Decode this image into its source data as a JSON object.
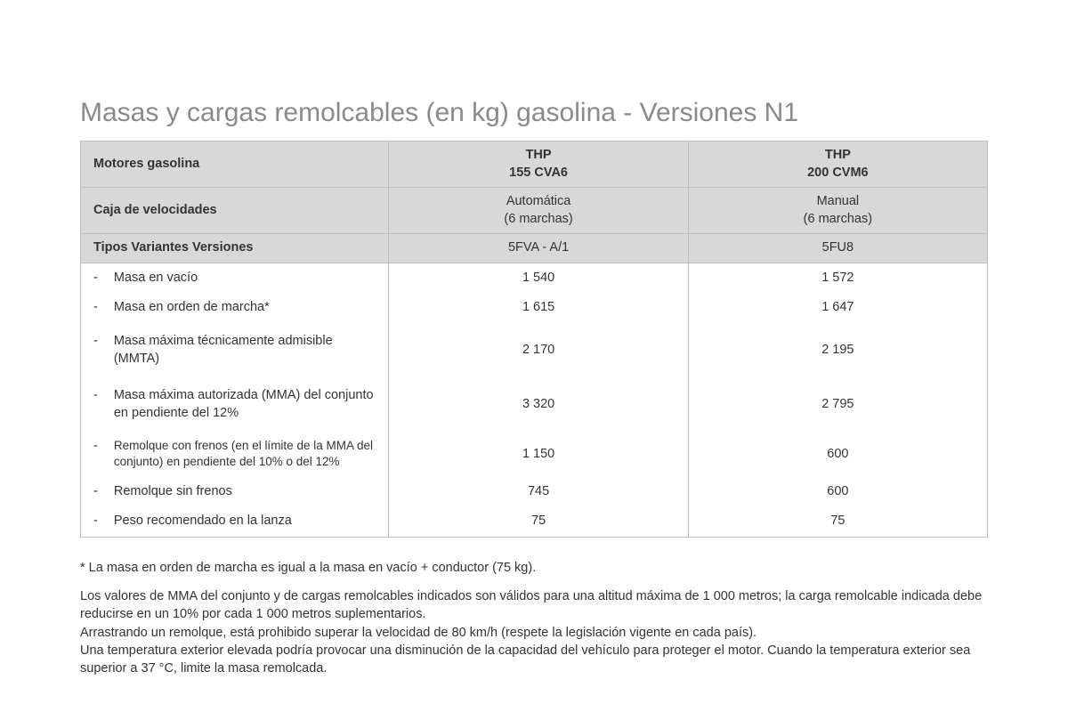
{
  "title": "Masas y cargas remolcables (en kg) gasolina - Versiones N1",
  "table": {
    "header_rows": [
      {
        "label": "Motores gasolina",
        "c1_l1": "THP",
        "c1_l2": "155 CVA6",
        "c2_l1": "THP",
        "c2_l2": "200 CVM6"
      },
      {
        "label": "Caja de velocidades",
        "c1_l1": "Automática",
        "c1_l2": "(6 marchas)",
        "c2_l1": "Manual",
        "c2_l2": "(6 marchas)"
      },
      {
        "label": "Tipos Variantes Versiones",
        "c1": "5FVA - A/1",
        "c2": "5FU8"
      }
    ],
    "rows": [
      {
        "label": "Masa en vacío",
        "c1": "1 540",
        "c2": "1 572"
      },
      {
        "label": "Masa en orden de marcha*",
        "c1": "1 615",
        "c2": "1 647",
        "spaced_after": true
      },
      {
        "label": "Masa máxima técnicamente admisible (MMTA)",
        "c1": "2 170",
        "c2": "2 195",
        "spaced": true
      },
      {
        "label": "Masa máxima autorizada (MMA) del conjunto en pendiente del 12%",
        "c1": "3 320",
        "c2": "2 795",
        "spaced": true
      },
      {
        "label": "Remolque con frenos (en el límite de la MMA del conjunto) en pendiente del 10% o del 12%",
        "c1": "1 150",
        "c2": "600",
        "small": true
      },
      {
        "label": "Remolque sin frenos",
        "c1": "745",
        "c2": "600"
      },
      {
        "label": "Peso recomendado en la lanza",
        "c1": "75",
        "c2": "75"
      }
    ]
  },
  "notes": {
    "p1": "* La masa en orden de marcha es igual a la masa en vacío + conductor (75 kg).",
    "p2": "Los valores de MMA del conjunto y de cargas remolcables indicados son válidos para una altitud máxima de 1 000 metros; la carga remolcable indicada debe reducirse en un 10% por cada 1 000 metros suplementarios.\nArrastrando un remolque, está prohibido superar la velocidad de 80 km/h (respete la legislación vigente en cada país).\nUna temperatura exterior elevada podría provocar una disminución de la capacidad del vehículo para proteger el motor. Cuando la temperatura exterior sea superior a 37 °C, limite la masa remolcada."
  }
}
